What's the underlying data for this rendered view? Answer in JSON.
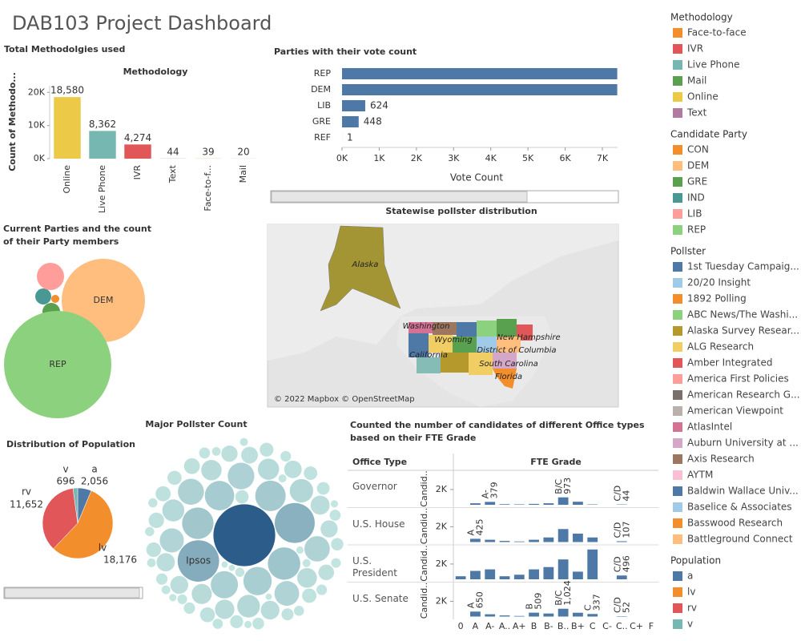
{
  "title": "DAB103 Project Dashboard",
  "chart_data": [
    {
      "type": "bar",
      "title": "Total Methodolgies used",
      "header": "Methodology",
      "y_label": "Count of Methodo...",
      "categories": [
        "Online",
        "Live Phone",
        "IVR",
        "Text",
        "Face-to-f...",
        "Mail"
      ],
      "values": [
        18580,
        8362,
        4274,
        44,
        39,
        20
      ],
      "value_labels": [
        "18,580",
        "8,362",
        "4,274",
        "44",
        "39",
        "20"
      ],
      "colors": [
        "#edc948",
        "#76b7b2",
        "#e15759",
        "#b07aa1",
        "#f28e2b",
        "#59a14f"
      ],
      "ylim": [
        0,
        22000
      ],
      "yticks": [
        {
          "value": 0,
          "label": "0K"
        },
        {
          "value": 10000,
          "label": "10K"
        },
        {
          "value": 20000,
          "label": "20K"
        }
      ]
    },
    {
      "type": "bar",
      "orientation": "horizontal",
      "title": "Parties with their vote count",
      "x_label": "Vote Count",
      "categories": [
        "REP",
        "DEM",
        "LIB",
        "GRE",
        "REF"
      ],
      "values": [
        7400,
        7400,
        624,
        448,
        1
      ],
      "value_labels": [
        null,
        null,
        "624",
        "448",
        "1"
      ],
      "color": "#4e79a7",
      "xlim": [
        0,
        7400
      ],
      "xticks": [
        {
          "value": 0,
          "label": "0K"
        },
        {
          "value": 1000,
          "label": "1K"
        },
        {
          "value": 2000,
          "label": "2K"
        },
        {
          "value": 3000,
          "label": "3K"
        },
        {
          "value": 4000,
          "label": "4K"
        },
        {
          "value": 5000,
          "label": "5K"
        },
        {
          "value": 6000,
          "label": "6K"
        },
        {
          "value": 7000,
          "label": "7K"
        }
      ]
    },
    {
      "type": "bubble",
      "title": "Current Parties and the count of their Party members",
      "categories": [
        null,
        "DEM",
        null,
        null,
        null,
        "REP"
      ],
      "values": [
        50,
        5420,
        243,
        200,
        580,
        9000
      ],
      "colors": [
        "#f28e2b",
        "#ffbe7d",
        "#59a14f",
        "#499894",
        "#ff9d9a",
        "#8cd17d"
      ]
    },
    {
      "type": "pie",
      "title": "Distribution of Population",
      "categories": [
        "a",
        "lv",
        "rv",
        "v"
      ],
      "values": [
        2056,
        18176,
        11652,
        696
      ],
      "value_labels": [
        "2,056",
        "18,176",
        "11,652",
        "696"
      ],
      "colors": [
        "#4e79a7",
        "#f28e2b",
        "#e15759",
        "#76b7b2"
      ]
    },
    {
      "type": "packedbubble",
      "title": "Major Pollster Count",
      "categories": [
        null,
        "Ipsos",
        null,
        null,
        null,
        null,
        null,
        null,
        null,
        null,
        null,
        null,
        null,
        null,
        null,
        null,
        null,
        null,
        null,
        null,
        null,
        null,
        null,
        null,
        null,
        null,
        null,
        null,
        null,
        null,
        null,
        null,
        null,
        null,
        null,
        null,
        null,
        null,
        null,
        null,
        null,
        null,
        null,
        null,
        null,
        null,
        null,
        null,
        null,
        null,
        null,
        null,
        null,
        null,
        null,
        null,
        null,
        null,
        null,
        null,
        null,
        null,
        null,
        null,
        null,
        null,
        null,
        null,
        null,
        null,
        null,
        null
      ],
      "values": [
        620,
        260,
        240,
        150,
        140,
        130,
        120,
        110,
        100,
        95,
        90,
        85,
        80,
        75,
        70,
        65,
        60,
        55,
        50,
        48,
        46,
        44,
        42,
        40,
        38,
        36,
        34,
        32,
        30,
        28,
        26,
        25,
        24,
        23,
        22,
        21,
        20,
        19,
        18,
        17,
        16,
        15,
        14,
        13,
        12,
        11,
        10,
        10,
        9,
        9,
        8,
        8,
        7,
        7,
        6,
        6,
        5,
        5,
        5,
        4,
        4,
        4,
        3,
        3,
        3,
        2,
        2,
        2,
        2,
        1,
        1,
        1
      ],
      "color_range": [
        "#c4e6e1",
        "#2b5c8a"
      ]
    },
    {
      "type": "facetbar",
      "title": "Counted the number of candidates of different Office types based on their FTE Grade",
      "row_header": "Office Type",
      "column_header": "FTE Grade",
      "y_label": "Candid..",
      "categories": [
        "0",
        "A",
        "A-",
        "A..",
        "A+",
        "B",
        "B-",
        "B..",
        "B+",
        "C",
        "C-",
        "C..",
        "C+",
        "F"
      ],
      "ylim": [
        0,
        4400
      ],
      "yticks": [
        {
          "value": 2000,
          "label": "2K"
        }
      ],
      "series": [
        {
          "name": "Governor",
          "color": "#4e79a7",
          "values": [
            0,
            200,
            379,
            80,
            60,
            120,
            200,
            973,
            400,
            50,
            0,
            44,
            0,
            0
          ],
          "value_labels": [
            null,
            null,
            "379",
            null,
            null,
            null,
            null,
            "973",
            null,
            null,
            null,
            "44",
            null,
            null
          ],
          "label_grades": [
            null,
            null,
            "A-",
            null,
            null,
            null,
            null,
            "B/C",
            null,
            null,
            null,
            "C/D",
            null,
            null
          ]
        },
        {
          "name": "U.S. House",
          "color": "#4e79a7",
          "values": [
            0,
            425,
            300,
            150,
            80,
            300,
            600,
            1700,
            1100,
            600,
            0,
            107,
            0,
            0
          ],
          "value_labels": [
            null,
            "425",
            null,
            null,
            null,
            null,
            null,
            null,
            null,
            null,
            null,
            "107",
            null,
            null
          ],
          "label_grades": [
            null,
            "A",
            null,
            null,
            null,
            null,
            null,
            null,
            null,
            null,
            null,
            "C/D",
            null,
            null
          ]
        },
        {
          "name": "U.S. President",
          "color": "#4e79a7",
          "values": [
            400,
            1100,
            1300,
            400,
            600,
            1300,
            1600,
            2600,
            1000,
            3900,
            0,
            496,
            0,
            0
          ],
          "value_labels": [
            null,
            null,
            null,
            null,
            null,
            null,
            null,
            null,
            null,
            null,
            null,
            "496",
            null,
            null
          ],
          "label_grades": [
            null,
            null,
            null,
            null,
            null,
            null,
            null,
            null,
            null,
            null,
            null,
            "C/D",
            null,
            null
          ]
        },
        {
          "name": "U.S. Senate",
          "color": "#4e79a7",
          "values": [
            0,
            650,
            300,
            150,
            80,
            509,
            400,
            1024,
            500,
            337,
            0,
            52,
            0,
            0
          ],
          "value_labels": [
            null,
            "650",
            null,
            null,
            null,
            "509",
            null,
            "1,024",
            null,
            "337",
            null,
            "52",
            null,
            null
          ],
          "label_grades": [
            null,
            "A",
            null,
            null,
            null,
            "B",
            null,
            "B/C",
            null,
            "C",
            null,
            "C/D",
            null,
            null
          ]
        }
      ]
    }
  ],
  "map": {
    "title": "Statewise pollster distribution",
    "labels": [
      "Alaska",
      "Washington",
      "Wyoming",
      "New Hampshire",
      "California",
      "District of Columbia",
      "South Carolina",
      "Florida"
    ],
    "credit": "© 2022 Mapbox © OpenStreetMap"
  },
  "legends": [
    {
      "title": "Methodology",
      "items": [
        {
          "label": "Face-to-face",
          "color": "#f28e2b"
        },
        {
          "label": "IVR",
          "color": "#e15759"
        },
        {
          "label": "Live Phone",
          "color": "#76b7b2"
        },
        {
          "label": "Mail",
          "color": "#59a14f"
        },
        {
          "label": "Online",
          "color": "#edc948"
        },
        {
          "label": "Text",
          "color": "#b07aa1"
        }
      ]
    },
    {
      "title": "Candidate Party",
      "items": [
        {
          "label": "CON",
          "color": "#f28e2b"
        },
        {
          "label": "DEM",
          "color": "#ffbe7d"
        },
        {
          "label": "GRE",
          "color": "#59a14f"
        },
        {
          "label": "IND",
          "color": "#499894"
        },
        {
          "label": "LIB",
          "color": "#ff9d9a"
        },
        {
          "label": "REP",
          "color": "#8cd17d"
        }
      ]
    },
    {
      "title": "Pollster",
      "items": [
        {
          "label": "1st Tuesday Campaig...",
          "color": "#4e79a7"
        },
        {
          "label": "20/20 Insight",
          "color": "#a0cbe8"
        },
        {
          "label": "1892 Polling",
          "color": "#f28e2b"
        },
        {
          "label": "ABC News/The Washi...",
          "color": "#8cd17d"
        },
        {
          "label": "Alaska Survey Resear...",
          "color": "#b6992d"
        },
        {
          "label": "ALG Research",
          "color": "#f1ce63"
        },
        {
          "label": "Amber Integrated",
          "color": "#e15759"
        },
        {
          "label": "America First Policies",
          "color": "#ff9d9a"
        },
        {
          "label": "American Research G...",
          "color": "#79706e"
        },
        {
          "label": "American Viewpoint",
          "color": "#bab0ac"
        },
        {
          "label": "AtlasIntel",
          "color": "#d37295"
        },
        {
          "label": "Auburn University at ...",
          "color": "#d4a6c8"
        },
        {
          "label": "Axis Research",
          "color": "#9d7660"
        },
        {
          "label": "AYTM",
          "color": "#fabfd2"
        },
        {
          "label": "Baldwin Wallace Univ...",
          "color": "#4e79a7"
        },
        {
          "label": "Baselice & Associates",
          "color": "#a0cbe8"
        },
        {
          "label": "Basswood Research",
          "color": "#f28e2b"
        },
        {
          "label": "Battleground Connect",
          "color": "#ffbe7d"
        }
      ]
    },
    {
      "title": "Population",
      "items": [
        {
          "label": "a",
          "color": "#4e79a7"
        },
        {
          "label": "lv",
          "color": "#f28e2b"
        },
        {
          "label": "rv",
          "color": "#e15759"
        },
        {
          "label": "v",
          "color": "#76b7b2"
        }
      ]
    }
  ]
}
